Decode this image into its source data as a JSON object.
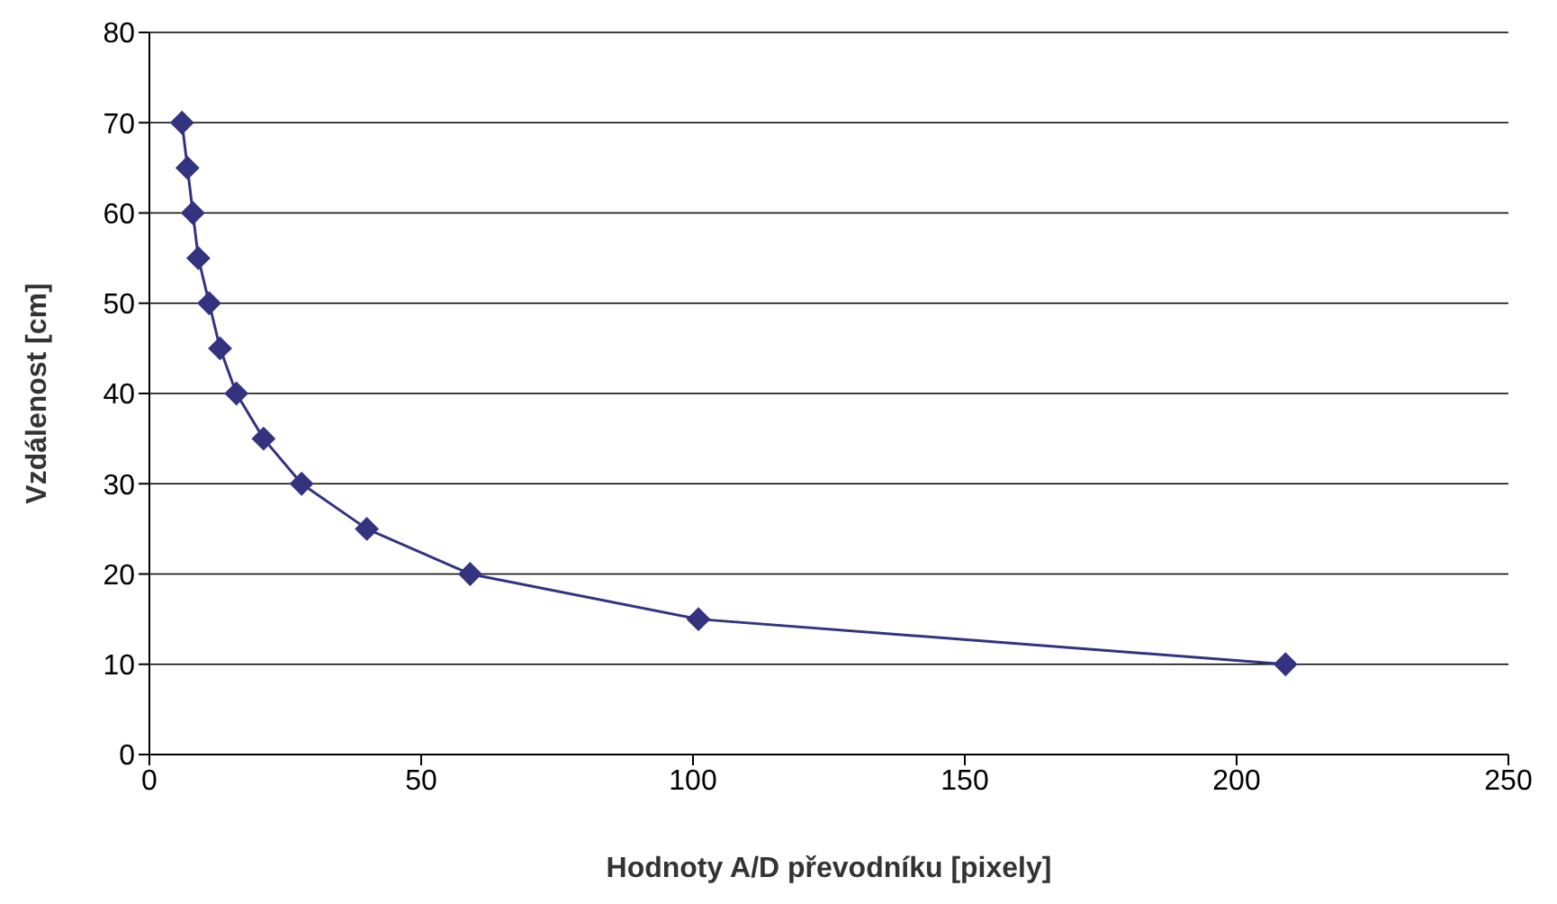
{
  "chart_data": {
    "type": "line",
    "xlabel": "Hodnoty A/D převodníku [pixely]",
    "ylabel": "Vzdálenost [cm]",
    "series": [
      {
        "color": "#333380",
        "x": [
          6,
          7,
          8,
          9,
          11,
          13,
          16,
          21,
          28,
          40,
          59,
          101,
          209
        ],
        "values": [
          70,
          65,
          60,
          55,
          50,
          45,
          40,
          35,
          30,
          25,
          20,
          15,
          10
        ]
      }
    ],
    "xlim": [
      0,
      250
    ],
    "xticks": [
      0,
      50,
      100,
      150,
      200,
      250
    ],
    "ylim": [
      0,
      80
    ],
    "yticks": [
      0,
      10,
      20,
      30,
      40,
      50,
      60,
      70,
      80
    ],
    "grid": "y",
    "marker": "diamond",
    "line_style": "solid",
    "legend": false
  }
}
